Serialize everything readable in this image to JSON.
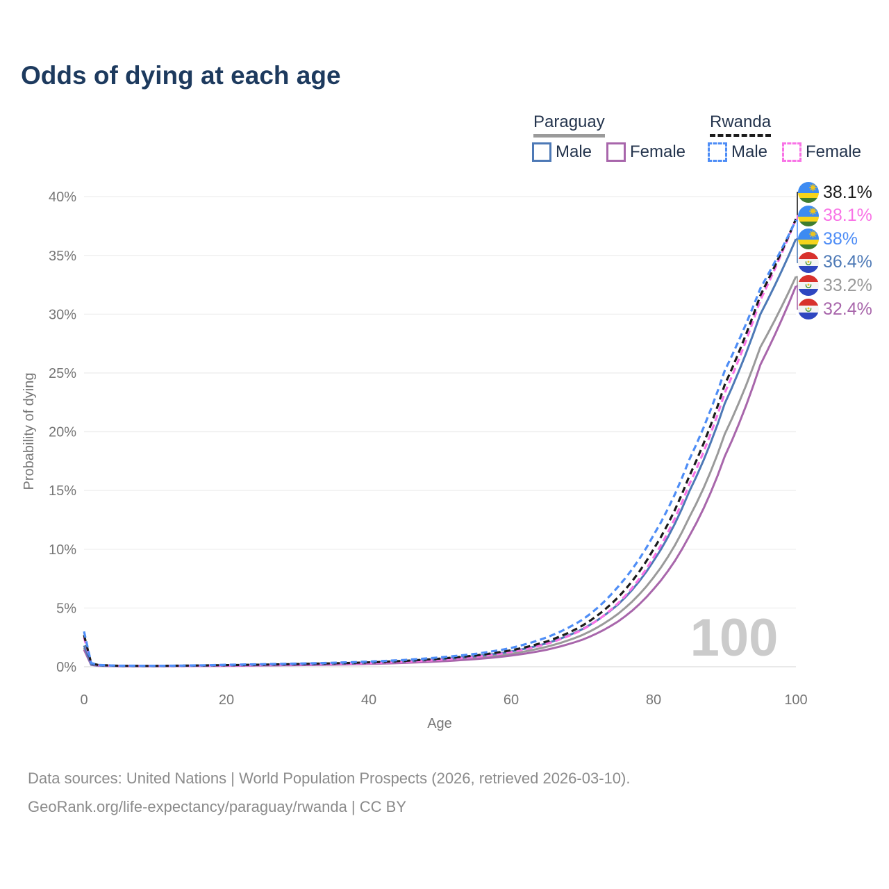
{
  "title": "Odds of dying at each age",
  "watermark": "100",
  "legend": {
    "paraguay": {
      "name": "Paraguay",
      "line_color": "#9a9a9a",
      "line_style": "solid",
      "male": {
        "label": "Male",
        "color": "#4d79b6"
      },
      "female": {
        "label": "Female",
        "color": "#a866ab"
      }
    },
    "rwanda": {
      "name": "Rwanda",
      "line_color": "#1b1b1b",
      "line_style": "dashed",
      "male": {
        "label": "Male",
        "color": "#4e8df6"
      },
      "female": {
        "label": "Female",
        "color": "#f973e6"
      }
    }
  },
  "end_labels": [
    {
      "flag": "rwanda",
      "label": "38.1%",
      "value": 38.1,
      "color": "#1b1b1b"
    },
    {
      "flag": "rwanda",
      "label": "38.1%",
      "value": 38.1,
      "color": "#f973e6"
    },
    {
      "flag": "rwanda",
      "label": "38%",
      "value": 38.0,
      "color": "#4e8df6"
    },
    {
      "flag": "paraguay",
      "label": "36.4%",
      "value": 36.4,
      "color": "#4d79b6"
    },
    {
      "flag": "paraguay",
      "label": "33.2%",
      "value": 33.2,
      "color": "#9a9a9a"
    },
    {
      "flag": "paraguay",
      "label": "32.4%",
      "value": 32.4,
      "color": "#a866ab"
    }
  ],
  "flags": {
    "rwanda": {
      "blue": "#3d8bf2",
      "yellow": "#f6d41c",
      "green": "#3e7d2f",
      "sun": "#eec51c"
    },
    "paraguay": {
      "red": "#d8312d",
      "white": "#f4f4f4",
      "blue": "#2e46c0",
      "wreath": "#4e9a3e",
      "star": "#e9c51f"
    }
  },
  "chart_data": {
    "type": "line",
    "title": "Odds of dying at each age",
    "xlabel": "Age",
    "ylabel": "Probability of dying",
    "xlim": [
      0,
      100
    ],
    "ylim": [
      0,
      40
    ],
    "grid": true,
    "legend_position": "top-right",
    "xticks": [
      0,
      20,
      40,
      60,
      80,
      100
    ],
    "ytick_values": [
      0,
      5,
      10,
      15,
      20,
      25,
      30,
      35,
      40
    ],
    "ytick_labels": [
      "0%",
      "5%",
      "10%",
      "15%",
      "20%",
      "25%",
      "30%",
      "35%",
      "40%"
    ],
    "x_unit": "years of age",
    "y_unit": "percent probability of dying at that age",
    "ages": [
      0,
      1,
      2,
      5,
      10,
      15,
      20,
      25,
      30,
      35,
      40,
      45,
      50,
      55,
      60,
      65,
      70,
      75,
      80,
      85,
      90,
      95,
      100
    ],
    "series": [
      {
        "name": "Paraguay both sexes",
        "country": "Paraguay",
        "sex": "both",
        "color": "#9a9a9a",
        "dashed": false,
        "end_value": 33.2,
        "values": [
          1.6,
          0.18,
          0.09,
          0.05,
          0.05,
          0.08,
          0.11,
          0.14,
          0.18,
          0.23,
          0.3,
          0.4,
          0.55,
          0.77,
          1.1,
          1.7,
          2.7,
          4.5,
          7.6,
          12.7,
          19.8,
          27.2,
          33.2
        ]
      },
      {
        "name": "Paraguay female",
        "country": "Paraguay",
        "sex": "female",
        "color": "#a866ab",
        "dashed": false,
        "end_value": 32.4,
        "values": [
          1.45,
          0.16,
          0.08,
          0.05,
          0.04,
          0.06,
          0.08,
          0.11,
          0.14,
          0.18,
          0.24,
          0.33,
          0.46,
          0.65,
          0.95,
          1.45,
          2.3,
          3.85,
          6.6,
          11.1,
          17.9,
          25.7,
          32.4
        ]
      },
      {
        "name": "Paraguay male",
        "country": "Paraguay",
        "sex": "male",
        "color": "#4d79b6",
        "dashed": false,
        "end_value": 36.4,
        "values": [
          1.8,
          0.2,
          0.1,
          0.06,
          0.06,
          0.09,
          0.13,
          0.17,
          0.21,
          0.27,
          0.35,
          0.47,
          0.64,
          0.9,
          1.3,
          2.0,
          3.2,
          5.3,
          9.0,
          14.9,
          22.4,
          30.0,
          36.4
        ]
      },
      {
        "name": "Rwanda female",
        "country": "Rwanda",
        "sex": "female",
        "color": "#f973e6",
        "dashed": true,
        "end_value": 38.1,
        "values": [
          2.5,
          0.27,
          0.13,
          0.07,
          0.06,
          0.08,
          0.11,
          0.15,
          0.19,
          0.24,
          0.31,
          0.42,
          0.59,
          0.84,
          1.25,
          1.95,
          3.15,
          5.4,
          9.3,
          15.5,
          23.3,
          31.2,
          38.1
        ]
      },
      {
        "name": "Rwanda both sexes",
        "country": "Rwanda",
        "sex": "both",
        "color": "#1b1b1b",
        "dashed": true,
        "end_value": 38.1,
        "values": [
          2.7,
          0.29,
          0.15,
          0.08,
          0.07,
          0.1,
          0.14,
          0.18,
          0.23,
          0.29,
          0.37,
          0.5,
          0.69,
          0.96,
          1.4,
          2.15,
          3.5,
          5.9,
          10.0,
          16.2,
          24.0,
          31.6,
          38.1
        ]
      },
      {
        "name": "Rwanda male",
        "country": "Rwanda",
        "sex": "male",
        "color": "#4e8df6",
        "dashed": true,
        "end_value": 38.0,
        "values": [
          3.0,
          0.32,
          0.16,
          0.09,
          0.08,
          0.11,
          0.17,
          0.22,
          0.27,
          0.34,
          0.44,
          0.58,
          0.8,
          1.1,
          1.6,
          2.5,
          4.0,
          6.8,
          11.2,
          17.6,
          25.2,
          32.2,
          38.0
        ]
      }
    ]
  },
  "footer": {
    "line1": "Data sources: United Nations | World Population Prospects (2026, retrieved 2026-03-10).",
    "line2": "GeoRank.org/life-expectancy/paraguay/rwanda | CC BY"
  }
}
